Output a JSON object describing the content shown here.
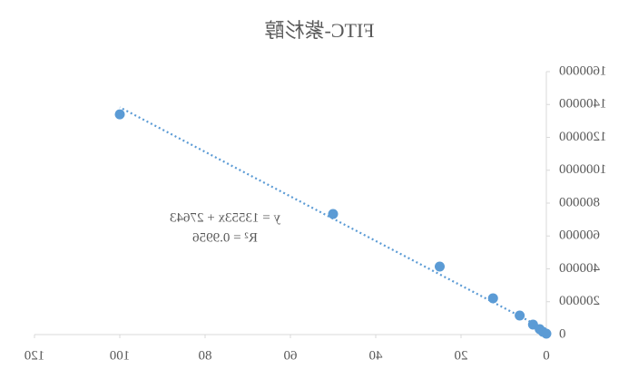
{
  "chart_data": {
    "type": "scatter",
    "title": "FITC-紫杉醇",
    "mirrored": true,
    "series": [
      {
        "color": "#5b9bd5",
        "x": [
          100,
          50,
          25,
          12.5,
          6.25,
          3.125,
          1.5625,
          0.78,
          0
        ],
        "values": [
          1340000,
          734000,
          414000,
          221000,
          116000,
          61000,
          33000,
          16500,
          5500
        ]
      }
    ],
    "trendline": {
      "slope": 13553,
      "intercept": 27643,
      "label": "y = 13553x + 27643",
      "r2_label": "R² = 0.9956"
    },
    "xlim": [
      0,
      120
    ],
    "xticks": [
      0,
      20,
      40,
      60,
      80,
      100,
      120
    ],
    "ylim": [
      0,
      1600000
    ],
    "yticks": [
      0,
      200000,
      400000,
      600000,
      800000,
      1000000,
      1200000,
      1400000,
      1600000
    ]
  }
}
